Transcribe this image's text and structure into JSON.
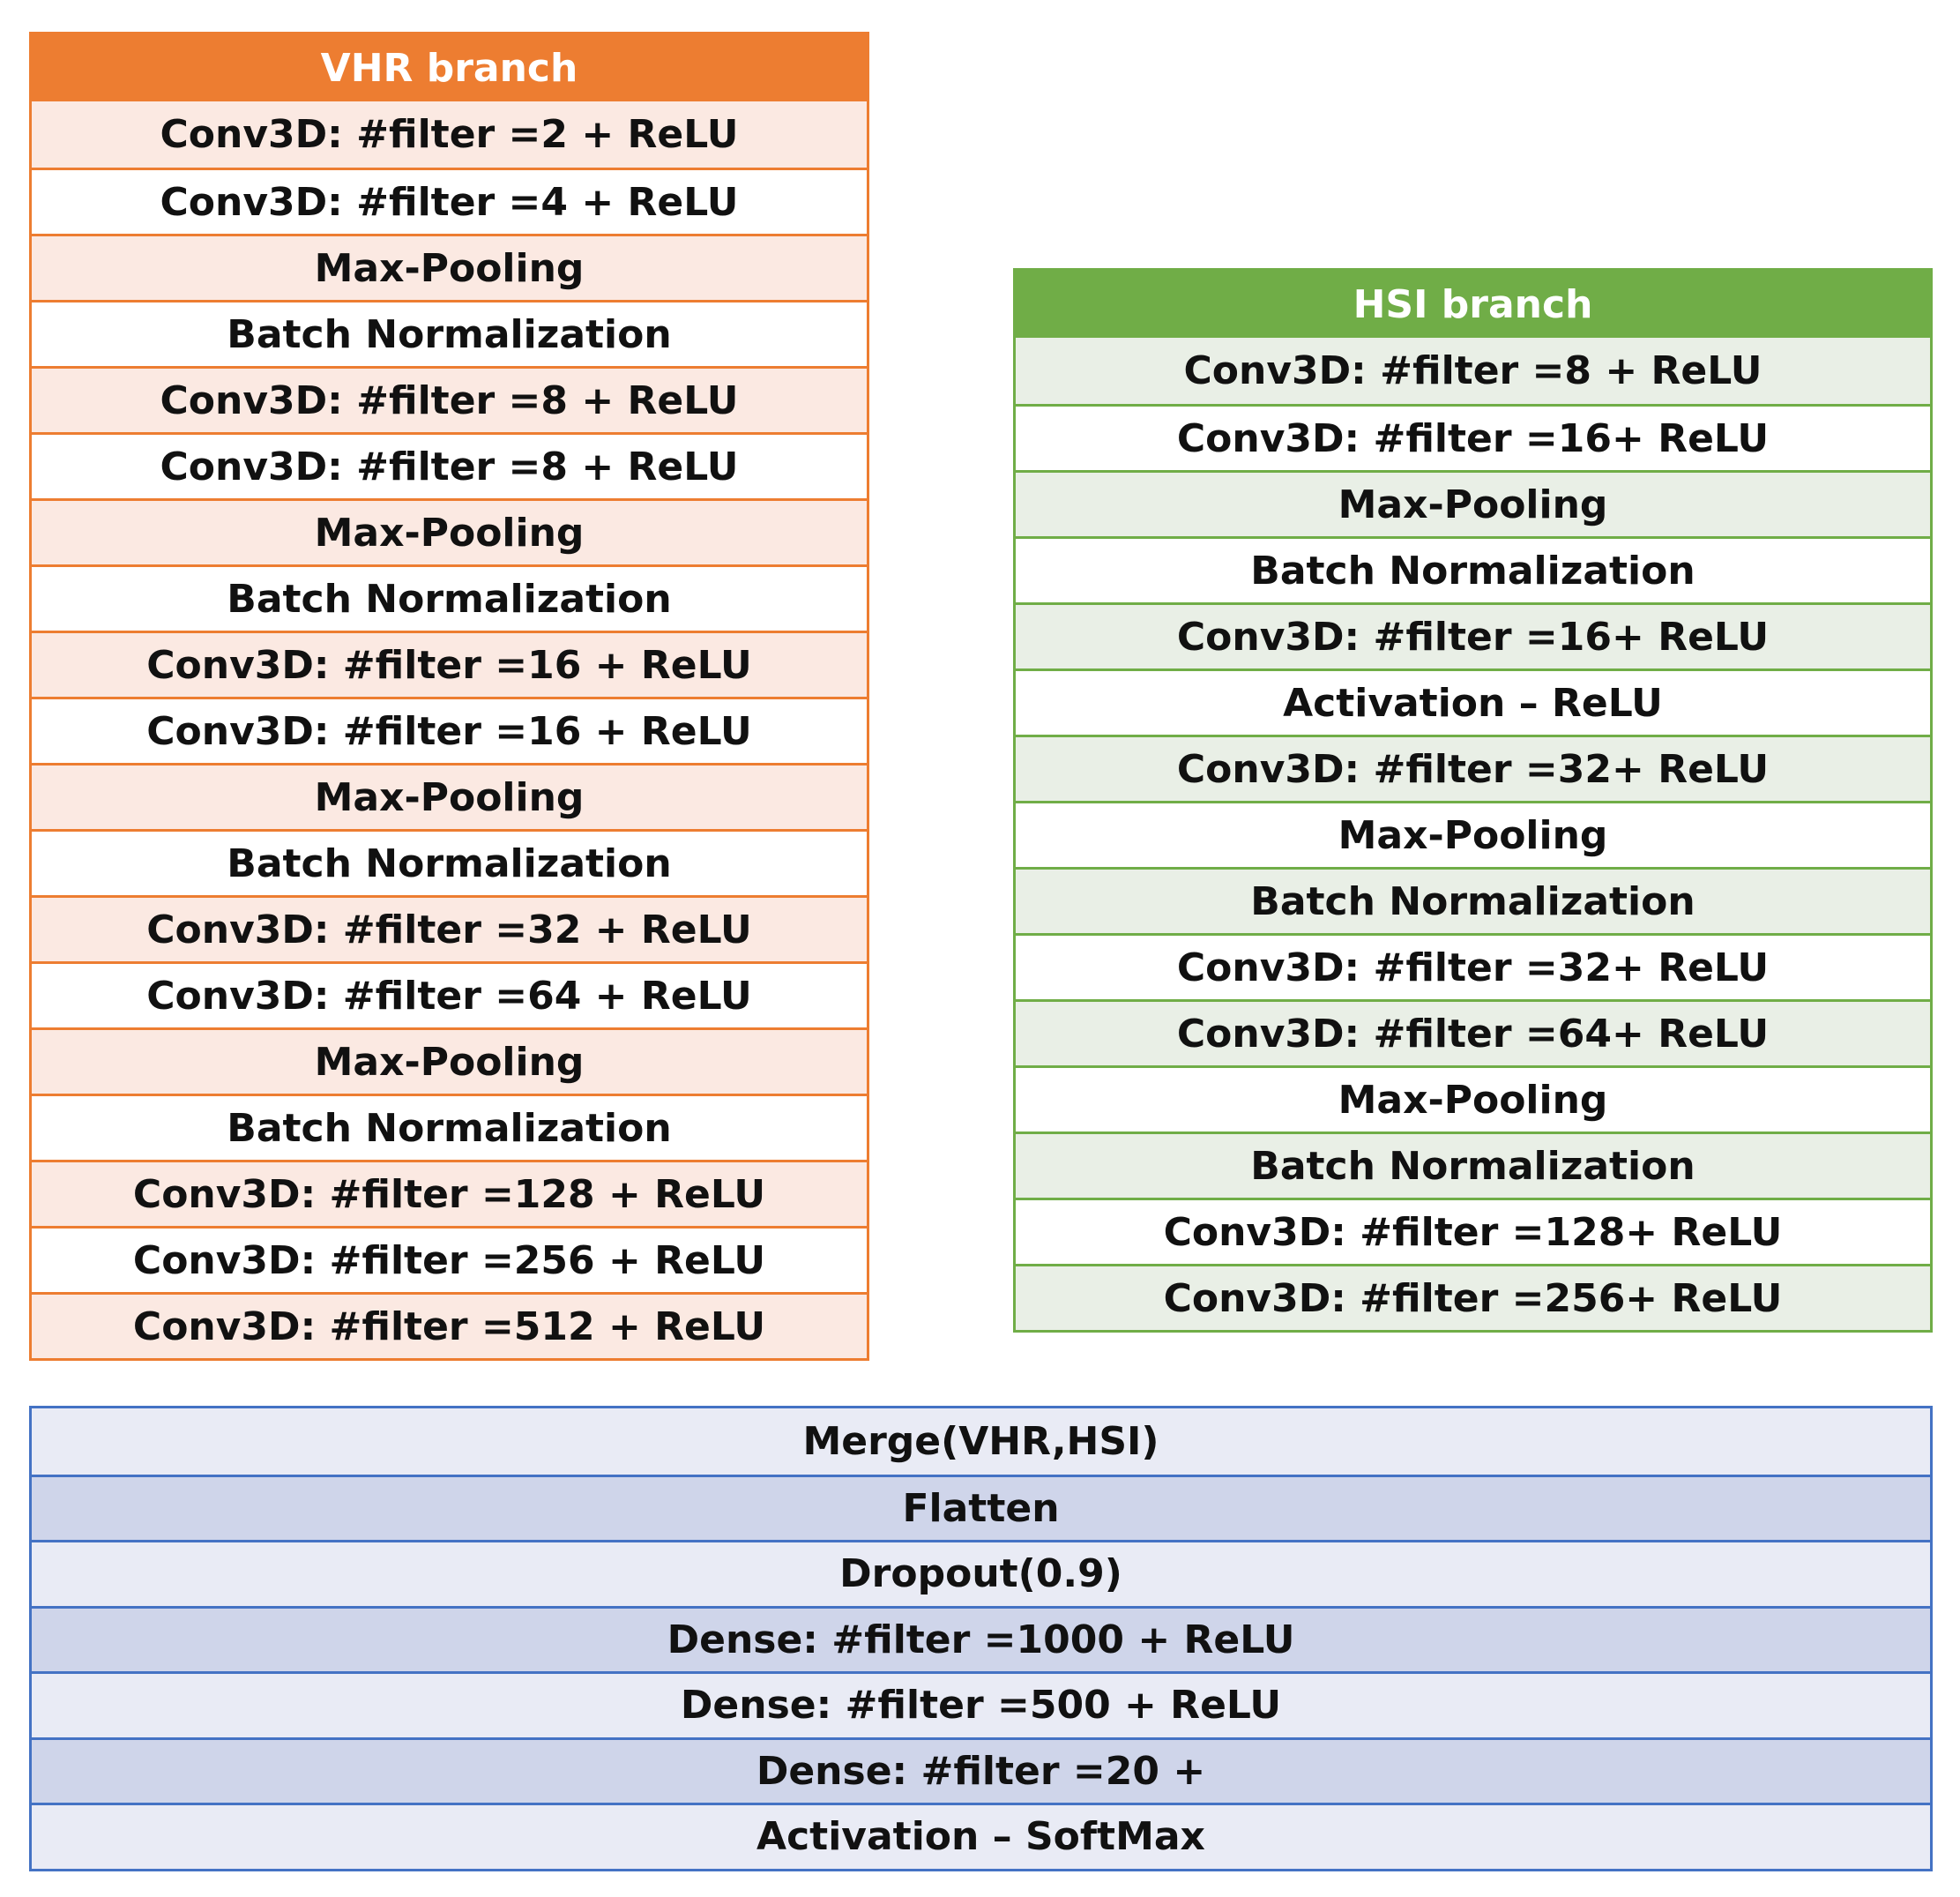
{
  "vhr": {
    "title": "VHR branch",
    "rows": [
      "Conv3D: #filter =2 + ReLU",
      "Conv3D: #filter =4 + ReLU",
      "Max-Pooling",
      "Batch Normalization",
      "Conv3D: #filter =8 + ReLU",
      "Conv3D: #filter =8 + ReLU",
      "Max-Pooling",
      "Batch Normalization",
      "Conv3D: #filter =16 + ReLU",
      "Conv3D: #filter =16 + ReLU",
      "Max-Pooling",
      "Batch Normalization",
      "Conv3D: #filter =32 + ReLU",
      "Conv3D: #filter =64 + ReLU",
      "Max-Pooling",
      "Batch Normalization",
      "Conv3D: #filter =128 + ReLU",
      "Conv3D: #filter =256 + ReLU",
      "Conv3D: #filter =512 + ReLU"
    ]
  },
  "hsi": {
    "title": "HSI branch",
    "rows": [
      "Conv3D: #filter =8 + ReLU",
      "Conv3D: #filter =16+ ReLU",
      "Max-Pooling",
      "Batch Normalization",
      "Conv3D: #filter =16+ ReLU",
      "Activation – ReLU",
      "Conv3D: #filter =32+ ReLU",
      "Max-Pooling",
      "Batch Normalization",
      "Conv3D: #filter =32+ ReLU",
      "Conv3D: #filter =64+ ReLU",
      "Max-Pooling",
      "Batch Normalization",
      "Conv3D: #filter =128+ ReLU",
      "Conv3D: #filter =256+ ReLU"
    ]
  },
  "merge": {
    "rows": [
      "Merge(VHR,HSI)",
      "Flatten",
      "Dropout(0.9)",
      "Dense: #filter =1000 + ReLU",
      "Dense: #filter =500 + ReLU",
      "Dense: #filter =20 +",
      "Activation – SoftMax"
    ]
  }
}
